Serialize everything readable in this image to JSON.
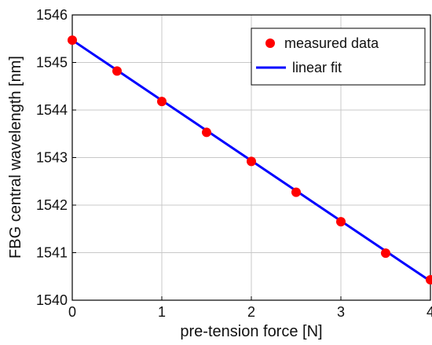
{
  "chart_data": {
    "type": "scatter",
    "xlabel": "pre-tension force [N]",
    "ylabel": "FBG central wavelength [nm]",
    "xlim": [
      0,
      4
    ],
    "ylim": [
      1540,
      1546
    ],
    "xticks": [
      "0",
      "1",
      "2",
      "3",
      "4"
    ],
    "yticks": [
      "1540",
      "1541",
      "1542",
      "1543",
      "1544",
      "1545",
      "1546"
    ],
    "grid": true,
    "legend_position": "top-right",
    "series": [
      {
        "name": "measured data",
        "kind": "markers",
        "color": "#ff0000",
        "x": [
          0,
          0.5,
          1,
          1.5,
          2,
          2.5,
          3,
          3.5,
          4
        ],
        "y": [
          1545.47,
          1544.82,
          1544.18,
          1543.53,
          1542.92,
          1542.27,
          1541.65,
          1540.99,
          1540.43
        ]
      },
      {
        "name": "linear fit",
        "kind": "line",
        "color": "#0000ff",
        "x": [
          0,
          4
        ],
        "y": [
          1545.47,
          1540.4
        ]
      }
    ]
  }
}
